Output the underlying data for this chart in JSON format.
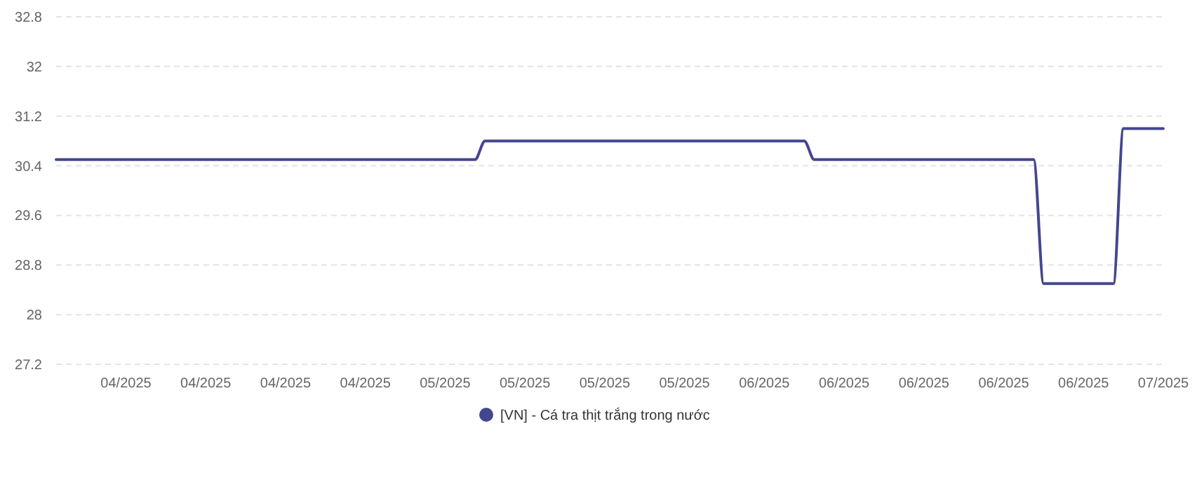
{
  "chart_data": {
    "type": "line",
    "categories": [
      null,
      null,
      null,
      null,
      null,
      null,
      null,
      "04/2025",
      null,
      null,
      null,
      null,
      null,
      null,
      null,
      "04/2025",
      null,
      null,
      null,
      null,
      null,
      null,
      null,
      "04/2025",
      null,
      null,
      null,
      null,
      null,
      null,
      null,
      "04/2025",
      null,
      null,
      null,
      null,
      null,
      null,
      null,
      "05/2025",
      null,
      null,
      null,
      null,
      null,
      null,
      null,
      "05/2025",
      null,
      null,
      null,
      null,
      null,
      null,
      null,
      "05/2025",
      null,
      null,
      null,
      null,
      null,
      null,
      null,
      "05/2025",
      null,
      null,
      null,
      null,
      null,
      null,
      null,
      "06/2025",
      null,
      null,
      null,
      null,
      null,
      null,
      null,
      "06/2025",
      null,
      null,
      null,
      null,
      null,
      null,
      null,
      "06/2025",
      null,
      null,
      null,
      null,
      null,
      null,
      null,
      "06/2025",
      null,
      null,
      null,
      null,
      null,
      null,
      null,
      "06/2025",
      null,
      null,
      null,
      null,
      null,
      null,
      null,
      "07/2025"
    ],
    "series": [
      {
        "name": "[VN] - Cá tra thịt trắng trong nước",
        "color": "#44468f",
        "values": [
          30.5,
          30.5,
          30.5,
          30.5,
          30.5,
          30.5,
          30.5,
          30.5,
          30.5,
          30.5,
          30.5,
          30.5,
          30.5,
          30.5,
          30.5,
          30.5,
          30.5,
          30.5,
          30.5,
          30.5,
          30.5,
          30.5,
          30.5,
          30.5,
          30.5,
          30.5,
          30.5,
          30.5,
          30.5,
          30.5,
          30.5,
          30.5,
          30.5,
          30.5,
          30.5,
          30.5,
          30.5,
          30.5,
          30.5,
          30.5,
          30.5,
          30.5,
          30.5,
          30.8,
          30.8,
          30.8,
          30.8,
          30.8,
          30.8,
          30.8,
          30.8,
          30.8,
          30.8,
          30.8,
          30.8,
          30.8,
          30.8,
          30.8,
          30.8,
          30.8,
          30.8,
          30.8,
          30.8,
          30.8,
          30.8,
          30.8,
          30.8,
          30.8,
          30.8,
          30.8,
          30.8,
          30.8,
          30.8,
          30.8,
          30.8,
          30.8,
          30.5,
          30.5,
          30.5,
          30.5,
          30.5,
          30.5,
          30.5,
          30.5,
          30.5,
          30.5,
          30.5,
          30.5,
          30.5,
          30.5,
          30.5,
          30.5,
          30.5,
          30.5,
          30.5,
          30.5,
          30.5,
          30.5,
          30.5,
          28.5,
          28.5,
          28.5,
          28.5,
          28.5,
          28.5,
          28.5,
          28.5,
          31,
          31,
          31,
          31,
          31
        ]
      }
    ],
    "ylim": [
      27.2,
      32.8
    ],
    "yticks": [
      27.2,
      28,
      28.8,
      29.6,
      30.4,
      31.2,
      32,
      32.8
    ],
    "grid": "y",
    "legend": "bottom",
    "marker": "none",
    "line_style": "solid"
  }
}
